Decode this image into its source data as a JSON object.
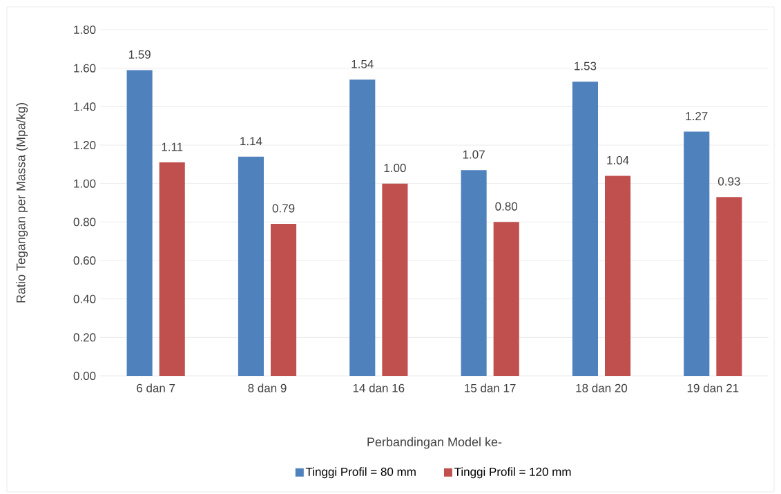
{
  "chart_data": {
    "type": "bar",
    "xlabel": "Perbandingan Model ke-",
    "ylabel": "Ratio Tegangan per Massa (Mpa/kg)",
    "categories": [
      "6 dan 7",
      "8 dan 9",
      "14 dan 16",
      "15 dan 17",
      "18 dan 20",
      "19 dan 21"
    ],
    "series": [
      {
        "name": "Tinggi Profil = 80 mm",
        "color": "#4f81bd",
        "values": [
          1.59,
          1.14,
          1.54,
          1.07,
          1.53,
          1.27
        ],
        "value_labels": [
          "1.59",
          "1.14",
          "1.54",
          "1.07",
          "1.53",
          "1.27"
        ]
      },
      {
        "name": "Tinggi Profil = 120 mm",
        "color": "#c0504d",
        "values": [
          1.11,
          0.79,
          1.0,
          0.8,
          1.04,
          0.93
        ],
        "value_labels": [
          "1.11",
          "0.79",
          "1.00",
          "0.80",
          "1.04",
          "0.93"
        ]
      }
    ],
    "ylim": [
      0,
      1.8
    ],
    "yticks": [
      {
        "value": 0,
        "label": "0.00"
      },
      {
        "value": 0.2,
        "label": "0.20"
      },
      {
        "value": 0.4,
        "label": "0.40"
      },
      {
        "value": 0.6,
        "label": "0.60"
      },
      {
        "value": 0.8,
        "label": "0.80"
      },
      {
        "value": 1.0,
        "label": "1.00"
      },
      {
        "value": 1.2,
        "label": "1.20"
      },
      {
        "value": 1.4,
        "label": "1.40"
      },
      {
        "value": 1.6,
        "label": "1.60"
      },
      {
        "value": 1.8,
        "label": "1.80"
      }
    ],
    "grid": "y",
    "legend": "bottom"
  }
}
